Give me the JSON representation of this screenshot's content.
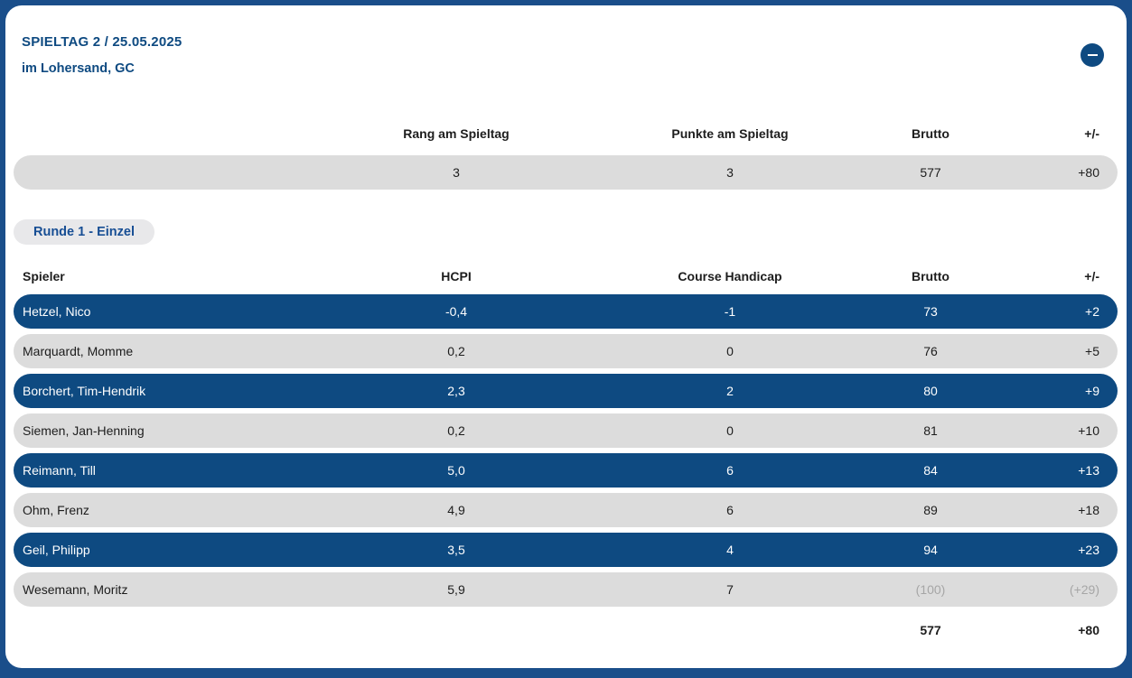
{
  "header": {
    "title": "SPIELTAG 2 / 25.05.2025",
    "subtitle": "im Lohersand, GC",
    "collapse_icon": "minus"
  },
  "summary_table": {
    "columns": [
      "Rang am Spieltag",
      "Punkte am Spieltag",
      "Brutto",
      "+/-"
    ],
    "row": {
      "rang": "3",
      "punkte": "3",
      "brutto": "577",
      "plusminus": "+80"
    }
  },
  "round_badge": {
    "label": "Runde 1 - Einzel"
  },
  "players_table": {
    "columns": [
      "Spieler",
      "HCPI",
      "Course Handicap",
      "Brutto",
      "+/-"
    ],
    "rows": [
      {
        "name": "Hetzel, Nico",
        "hcpi": "-0,4",
        "course_handicap": "-1",
        "brutto": "73",
        "plusminus": "+2",
        "highlighted": true
      },
      {
        "name": "Marquardt, Momme",
        "hcpi": "0,2",
        "course_handicap": "0",
        "brutto": "76",
        "plusminus": "+5",
        "highlighted": false
      },
      {
        "name": "Borchert, Tim-Hendrik",
        "hcpi": "2,3",
        "course_handicap": "2",
        "brutto": "80",
        "plusminus": "+9",
        "highlighted": true
      },
      {
        "name": "Siemen, Jan-Henning",
        "hcpi": "0,2",
        "course_handicap": "0",
        "brutto": "81",
        "plusminus": "+10",
        "highlighted": false
      },
      {
        "name": "Reimann, Till",
        "hcpi": "5,0",
        "course_handicap": "6",
        "brutto": "84",
        "plusminus": "+13",
        "highlighted": true
      },
      {
        "name": "Ohm, Frenz",
        "hcpi": "4,9",
        "course_handicap": "6",
        "brutto": "89",
        "plusminus": "+18",
        "highlighted": false
      },
      {
        "name": "Geil, Philipp",
        "hcpi": "3,5",
        "course_handicap": "4",
        "brutto": "94",
        "plusminus": "+23",
        "highlighted": true
      },
      {
        "name": "Wesemann, Moritz",
        "hcpi": "5,9",
        "course_handicap": "7",
        "brutto": "(100)",
        "plusminus": "(+29)",
        "highlighted": false
      }
    ],
    "total": {
      "brutto": "577",
      "plusminus": "+80"
    }
  },
  "colors": {
    "page_background": "#1a4e8a",
    "row_highlight": "#0e4a81",
    "row_default": "#dcdcdc",
    "header_text": "#0e4a81",
    "badge_background": "#e8e8ea",
    "badge_text": "#174e94",
    "muted_text": "#a6a6a6"
  }
}
